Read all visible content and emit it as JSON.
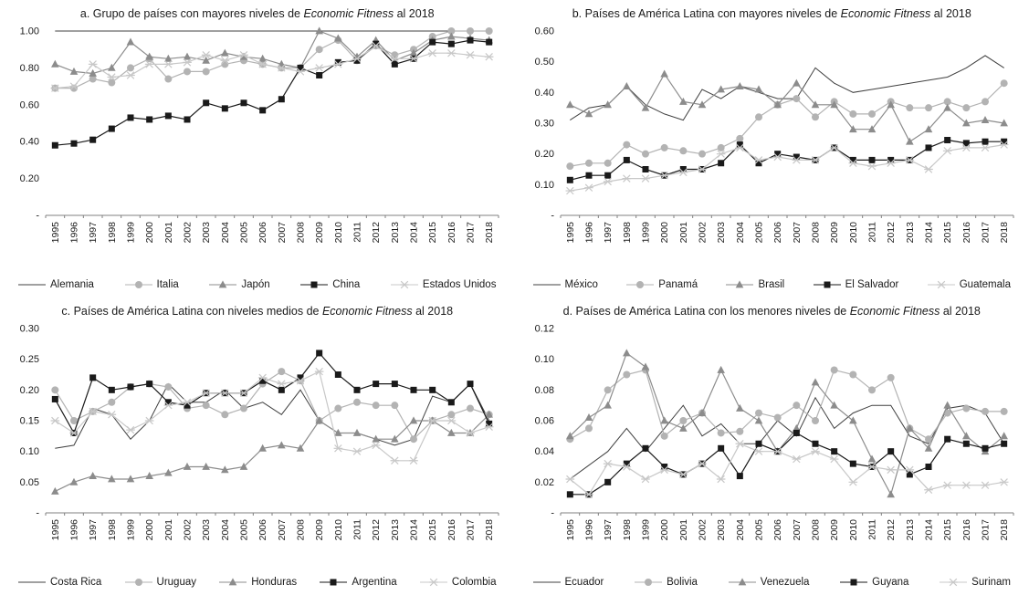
{
  "page": {
    "background": "#ffffff",
    "axis_color": "#808080",
    "text_color": "#1a1a1a"
  },
  "chart_data": [
    {
      "type": "line",
      "panel": "a",
      "title_prefix": "a. Grupo de países con mayores niveles de ",
      "title_italic": "Economic Fitness",
      "title_suffix": " al 2018",
      "x": [
        1995,
        1996,
        1997,
        1998,
        1999,
        2000,
        2001,
        2002,
        2003,
        2004,
        2005,
        2006,
        2007,
        2008,
        2009,
        2010,
        2011,
        2012,
        2013,
        2014,
        2015,
        2016,
        2017,
        2018
      ],
      "ylim": [
        0,
        1.0
      ],
      "ytick_step": 0.2,
      "ytick_labels": [
        "1.00",
        "0.80",
        "0.60",
        "0.40",
        "0.20",
        "-"
      ],
      "grid": false,
      "legend_position": "bottom",
      "series": [
        {
          "name": "Alemania",
          "marker": "none",
          "color": "#404040",
          "values": [
            1.0,
            1.0,
            1.0,
            1.0,
            1.0,
            1.0,
            1.0,
            1.0,
            1.0,
            1.0,
            1.0,
            1.0,
            1.0,
            1.0,
            1.0,
            1.0,
            1.0,
            1.0,
            1.0,
            1.0,
            1.0,
            1.0,
            1.0,
            1.0
          ]
        },
        {
          "name": "Italia",
          "marker": "circle",
          "color": "#b3b3b3",
          "values": [
            0.69,
            0.69,
            0.74,
            0.72,
            0.8,
            0.85,
            0.74,
            0.78,
            0.78,
            0.82,
            0.84,
            0.82,
            0.8,
            0.8,
            0.9,
            0.95,
            0.84,
            0.92,
            0.87,
            0.9,
            0.97,
            1.0,
            1.0,
            1.0
          ]
        },
        {
          "name": "Japón",
          "marker": "triangle",
          "color": "#8c8c8c",
          "values": [
            0.82,
            0.78,
            0.77,
            0.8,
            0.94,
            0.86,
            0.85,
            0.86,
            0.84,
            0.88,
            0.86,
            0.85,
            0.82,
            0.8,
            1.0,
            0.96,
            0.86,
            0.95,
            0.84,
            0.88,
            0.95,
            0.97,
            0.96,
            0.95
          ]
        },
        {
          "name": "China",
          "marker": "square",
          "color": "#1a1a1a",
          "values": [
            0.38,
            0.39,
            0.41,
            0.47,
            0.53,
            0.52,
            0.54,
            0.52,
            0.61,
            0.58,
            0.61,
            0.57,
            0.63,
            0.8,
            0.76,
            0.83,
            0.84,
            0.93,
            0.82,
            0.85,
            0.94,
            0.93,
            0.95,
            0.94
          ]
        },
        {
          "name": "Estados Unidos",
          "marker": "x",
          "color": "#c8c8c8",
          "values": [
            0.69,
            0.7,
            0.82,
            0.75,
            0.76,
            0.82,
            0.82,
            0.83,
            0.87,
            0.84,
            0.87,
            0.82,
            0.8,
            0.78,
            0.8,
            0.82,
            0.85,
            0.92,
            0.85,
            0.85,
            0.88,
            0.88,
            0.87,
            0.86
          ]
        }
      ]
    },
    {
      "type": "line",
      "panel": "b",
      "title_prefix": "b. Países de América Latina con mayores niveles de ",
      "title_italic": "Economic Fitness",
      "title_suffix": " al 2018",
      "x": [
        1995,
        1996,
        1997,
        1998,
        1999,
        2000,
        2001,
        2002,
        2003,
        2004,
        2005,
        2006,
        2007,
        2008,
        2009,
        2010,
        2011,
        2012,
        2013,
        2014,
        2015,
        2016,
        2017,
        2018
      ],
      "ylim": [
        0,
        0.6
      ],
      "ytick_step": 0.1,
      "ytick_labels": [
        "0.60",
        "0.50",
        "0.40",
        "0.30",
        "0.20",
        "0.10",
        "-"
      ],
      "grid": false,
      "legend_position": "bottom",
      "series": [
        {
          "name": "México",
          "marker": "none",
          "color": "#404040",
          "values": [
            0.31,
            0.35,
            0.36,
            0.42,
            0.36,
            0.33,
            0.31,
            0.41,
            0.38,
            0.42,
            0.4,
            0.38,
            0.38,
            0.48,
            0.43,
            0.4,
            0.41,
            0.42,
            0.43,
            0.44,
            0.45,
            0.48,
            0.52,
            0.48
          ]
        },
        {
          "name": "Panamá",
          "marker": "circle",
          "color": "#b3b3b3",
          "values": [
            0.16,
            0.17,
            0.17,
            0.23,
            0.2,
            0.22,
            0.21,
            0.2,
            0.22,
            0.25,
            0.32,
            0.36,
            0.38,
            0.32,
            0.37,
            0.33,
            0.33,
            0.37,
            0.35,
            0.35,
            0.37,
            0.35,
            0.37,
            0.43
          ]
        },
        {
          "name": "Brasil",
          "marker": "triangle",
          "color": "#8c8c8c",
          "values": [
            0.36,
            0.33,
            0.36,
            0.42,
            0.35,
            0.46,
            0.37,
            0.36,
            0.41,
            0.42,
            0.41,
            0.36,
            0.43,
            0.36,
            0.36,
            0.28,
            0.28,
            0.36,
            0.24,
            0.28,
            0.35,
            0.3,
            0.31,
            0.3
          ]
        },
        {
          "name": "El Salvador",
          "marker": "square",
          "color": "#1a1a1a",
          "values": [
            0.115,
            0.13,
            0.13,
            0.18,
            0.15,
            0.13,
            0.15,
            0.15,
            0.17,
            0.23,
            0.17,
            0.2,
            0.19,
            0.18,
            0.22,
            0.18,
            0.18,
            0.18,
            0.18,
            0.22,
            0.245,
            0.235,
            0.24,
            0.24
          ]
        },
        {
          "name": "Guatemala",
          "marker": "x",
          "color": "#c8c8c8",
          "values": [
            0.08,
            0.09,
            0.11,
            0.12,
            0.12,
            0.13,
            0.14,
            0.15,
            0.2,
            0.22,
            0.18,
            0.19,
            0.18,
            0.18,
            0.22,
            0.17,
            0.16,
            0.17,
            0.18,
            0.15,
            0.21,
            0.22,
            0.22,
            0.23
          ]
        }
      ]
    },
    {
      "type": "line",
      "panel": "c",
      "title_prefix": "c. Países de América Latina con niveles medios de ",
      "title_italic": "Economic Fitness",
      "title_suffix": " al 2018",
      "x": [
        1995,
        1996,
        1997,
        1998,
        1999,
        2000,
        2001,
        2002,
        2003,
        2004,
        2005,
        2006,
        2007,
        2008,
        2009,
        2010,
        2011,
        2012,
        2013,
        2014,
        2015,
        2016,
        2017,
        2018
      ],
      "ylim": [
        0,
        0.3
      ],
      "ytick_step": 0.05,
      "ytick_labels": [
        "0.30",
        "0.25",
        "0.20",
        "0.15",
        "0.10",
        "0.05",
        "-"
      ],
      "grid": false,
      "legend_position": "bottom",
      "series": [
        {
          "name": "Costa Rica",
          "marker": "none",
          "color": "#404040",
          "values": [
            0.105,
            0.11,
            0.17,
            0.16,
            0.12,
            0.15,
            0.21,
            0.18,
            0.18,
            0.2,
            0.17,
            0.18,
            0.16,
            0.2,
            0.15,
            0.13,
            0.13,
            0.12,
            0.11,
            0.12,
            0.19,
            0.18,
            0.21,
            0.15
          ]
        },
        {
          "name": "Uruguay",
          "marker": "circle",
          "color": "#b3b3b3",
          "values": [
            0.2,
            0.15,
            0.165,
            0.18,
            0.205,
            0.21,
            0.205,
            0.17,
            0.175,
            0.16,
            0.17,
            0.21,
            0.23,
            0.215,
            0.15,
            0.17,
            0.18,
            0.175,
            0.175,
            0.12,
            0.15,
            0.16,
            0.17,
            0.16
          ]
        },
        {
          "name": "Honduras",
          "marker": "triangle",
          "color": "#8c8c8c",
          "values": [
            0.035,
            0.05,
            0.06,
            0.055,
            0.055,
            0.06,
            0.065,
            0.075,
            0.075,
            0.07,
            0.075,
            0.105,
            0.11,
            0.105,
            0.15,
            0.13,
            0.13,
            0.12,
            0.12,
            0.15,
            0.15,
            0.13,
            0.13,
            0.16
          ]
        },
        {
          "name": "Argentina",
          "marker": "square",
          "color": "#1a1a1a",
          "values": [
            0.185,
            0.13,
            0.22,
            0.2,
            0.205,
            0.21,
            0.18,
            0.175,
            0.195,
            0.195,
            0.195,
            0.215,
            0.2,
            0.22,
            0.26,
            0.225,
            0.2,
            0.21,
            0.21,
            0.2,
            0.2,
            0.18,
            0.21,
            0.145
          ]
        },
        {
          "name": "Colombia",
          "marker": "x",
          "color": "#c8c8c8",
          "values": [
            0.15,
            0.13,
            0.165,
            0.16,
            0.135,
            0.15,
            0.175,
            0.18,
            0.195,
            0.195,
            0.195,
            0.22,
            0.21,
            0.215,
            0.23,
            0.105,
            0.1,
            0.11,
            0.085,
            0.085,
            0.15,
            0.15,
            0.13,
            0.14
          ]
        }
      ]
    },
    {
      "type": "line",
      "panel": "d",
      "title_prefix": "d. Países de América Latina con los menores niveles de ",
      "title_italic": "Economic Fitness",
      "title_suffix": " al 2018",
      "x": [
        1995,
        1996,
        1997,
        1998,
        1999,
        2000,
        2001,
        2002,
        2003,
        2004,
        2005,
        2006,
        2007,
        2008,
        2009,
        2010,
        2011,
        2012,
        2013,
        2014,
        2015,
        2016,
        2017,
        2018
      ],
      "ylim": [
        0,
        0.12
      ],
      "ytick_step": 0.02,
      "ytick_labels": [
        "0.12",
        "0.10",
        "0.08",
        "0.06",
        "0.04",
        "0.02",
        "-"
      ],
      "grid": false,
      "legend_position": "bottom",
      "series": [
        {
          "name": "Ecuador",
          "marker": "none",
          "color": "#404040",
          "values": [
            0.022,
            0.031,
            0.04,
            0.055,
            0.04,
            0.055,
            0.07,
            0.05,
            0.058,
            0.045,
            0.045,
            0.06,
            0.05,
            0.075,
            0.055,
            0.065,
            0.07,
            0.07,
            0.05,
            0.045,
            0.068,
            0.07,
            0.065,
            0.045
          ]
        },
        {
          "name": "Bolivia",
          "marker": "circle",
          "color": "#b3b3b3",
          "values": [
            0.048,
            0.055,
            0.08,
            0.09,
            0.093,
            0.05,
            0.06,
            0.065,
            0.052,
            0.053,
            0.065,
            0.062,
            0.07,
            0.06,
            0.093,
            0.09,
            0.08,
            0.088,
            0.055,
            0.048,
            0.065,
            0.068,
            0.066,
            0.066
          ]
        },
        {
          "name": "Venezuela",
          "marker": "triangle",
          "color": "#8c8c8c",
          "values": [
            0.05,
            0.062,
            0.07,
            0.104,
            0.095,
            0.06,
            0.055,
            0.065,
            0.093,
            0.068,
            0.06,
            0.04,
            0.055,
            0.085,
            0.07,
            0.06,
            0.035,
            0.012,
            0.055,
            0.042,
            0.07,
            0.05,
            0.04,
            0.05
          ]
        },
        {
          "name": "Guyana",
          "marker": "square",
          "color": "#1a1a1a",
          "values": [
            0.012,
            0.012,
            0.02,
            0.032,
            0.042,
            0.03,
            0.025,
            0.032,
            0.042,
            0.024,
            0.045,
            0.04,
            0.052,
            0.045,
            0.04,
            0.032,
            0.03,
            0.04,
            0.025,
            0.03,
            0.048,
            0.045,
            0.042,
            0.045
          ]
        },
        {
          "name": "Surinam",
          "marker": "x",
          "color": "#c8c8c8",
          "values": [
            0.022,
            0.012,
            0.032,
            0.03,
            0.022,
            0.028,
            0.025,
            0.032,
            0.022,
            0.045,
            0.04,
            0.04,
            0.035,
            0.04,
            0.035,
            0.02,
            0.03,
            0.028,
            0.028,
            0.015,
            0.018,
            0.018,
            0.018,
            0.02
          ]
        }
      ]
    }
  ]
}
